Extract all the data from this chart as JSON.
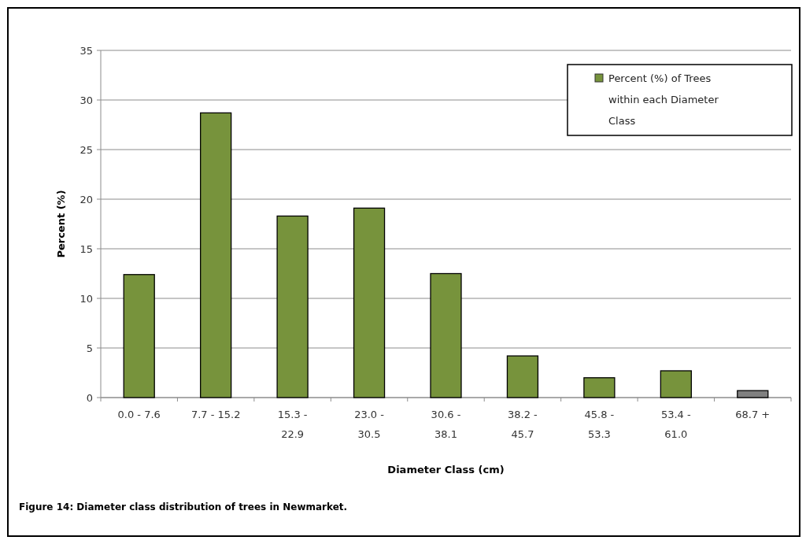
{
  "chart_data": {
    "type": "bar",
    "categories": [
      "0.0 - 7.6",
      "7.7 - 15.2",
      "15.3 - 22.9",
      "23.0 - 30.5",
      "30.6 - 38.1",
      "38.2 - 45.7",
      "45.8 - 53.3",
      "53.4 - 61.0",
      "68.7 +"
    ],
    "series": [
      {
        "name": "Percent (%) of Trees within each Diameter Class",
        "color": "#77933c",
        "colors": [
          "#77933c",
          "#77933c",
          "#77933c",
          "#77933c",
          "#77933c",
          "#77933c",
          "#77933c",
          "#77933c",
          "#808080"
        ],
        "values": [
          12.4,
          28.7,
          18.3,
          19.1,
          12.5,
          4.2,
          2.0,
          2.7,
          0.7
        ]
      }
    ],
    "xlabel": "Diameter Class (cm)",
    "ylabel": "Percent (%)",
    "ylim": [
      0,
      35
    ],
    "yticks": [
      0,
      5,
      10,
      15,
      20,
      25,
      30,
      35
    ],
    "grid": "y",
    "legend": "top right",
    "annotations": [
      "Figure 14: Diameter class distribution of trees in Newmarket."
    ]
  }
}
